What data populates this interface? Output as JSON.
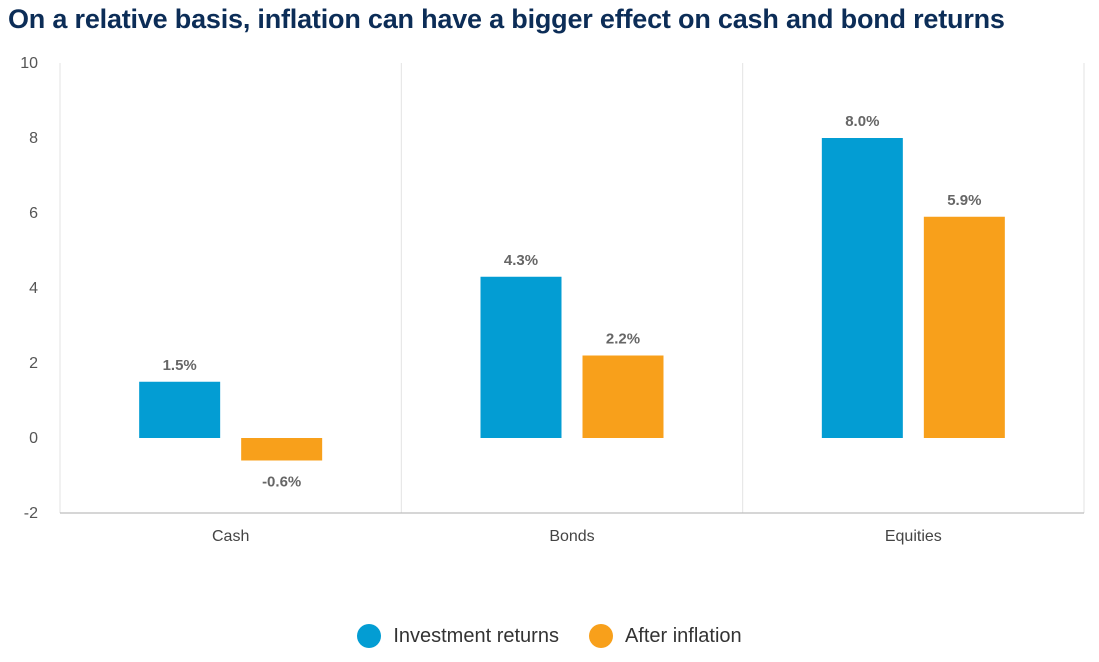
{
  "chart_data": {
    "type": "bar",
    "title": "On a relative basis, inflation can have a bigger effect on cash and bond returns",
    "categories": [
      "Cash",
      "Bonds",
      "Equities"
    ],
    "series": [
      {
        "name": "Investment returns",
        "color": "#039dd3",
        "values": [
          1.5,
          4.3,
          8.0
        ],
        "labels": [
          "1.5%",
          "4.3%",
          "8.0%"
        ]
      },
      {
        "name": "After inflation",
        "color": "#f8a01b",
        "values": [
          -0.6,
          2.2,
          5.9
        ],
        "labels": [
          "-0.6%",
          "2.2%",
          "5.9%"
        ]
      }
    ],
    "yticks": [
      10,
      8,
      6,
      4,
      2,
      0,
      -2
    ],
    "ylim": [
      -2,
      10
    ],
    "xlabel": "",
    "ylabel": "",
    "grid": "vertical category separators",
    "legend": "bottom-center"
  }
}
